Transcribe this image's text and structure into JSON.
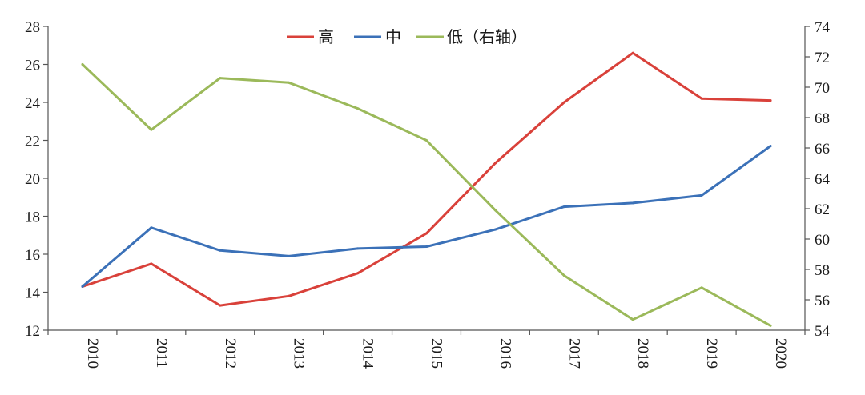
{
  "chart_data": {
    "type": "line",
    "title": "",
    "xlabel": "",
    "ylabel": "",
    "y2label": "",
    "categories": [
      "2010",
      "2011",
      "2012",
      "2013",
      "2014",
      "2015",
      "2016",
      "2017",
      "2018",
      "2019",
      "2020"
    ],
    "ylim": [
      12,
      28
    ],
    "y_ticks": [
      "12",
      "14",
      "16",
      "18",
      "20",
      "22",
      "24",
      "26",
      "28"
    ],
    "y2lim": [
      54,
      74
    ],
    "y2_ticks": [
      "54",
      "56",
      "58",
      "60",
      "62",
      "64",
      "66",
      "68",
      "70",
      "72",
      "74"
    ],
    "legend_position": "top-center",
    "grid": false,
    "series": [
      {
        "name": "高",
        "axis": "left",
        "color": "#d9413a",
        "values": [
          14.3,
          15.5,
          13.3,
          13.8,
          15.0,
          17.1,
          20.8,
          24.0,
          26.6,
          24.2,
          24.1
        ]
      },
      {
        "name": "中",
        "axis": "left",
        "color": "#3b71b8",
        "values": [
          14.3,
          17.4,
          16.2,
          15.9,
          16.3,
          16.4,
          17.3,
          18.5,
          18.7,
          19.1,
          21.7
        ]
      },
      {
        "name": "低（右轴）",
        "axis": "right",
        "color": "#9bb95a",
        "values": [
          71.5,
          67.2,
          70.6,
          70.3,
          68.6,
          66.5,
          61.9,
          57.6,
          54.7,
          56.8,
          54.3
        ]
      }
    ]
  }
}
